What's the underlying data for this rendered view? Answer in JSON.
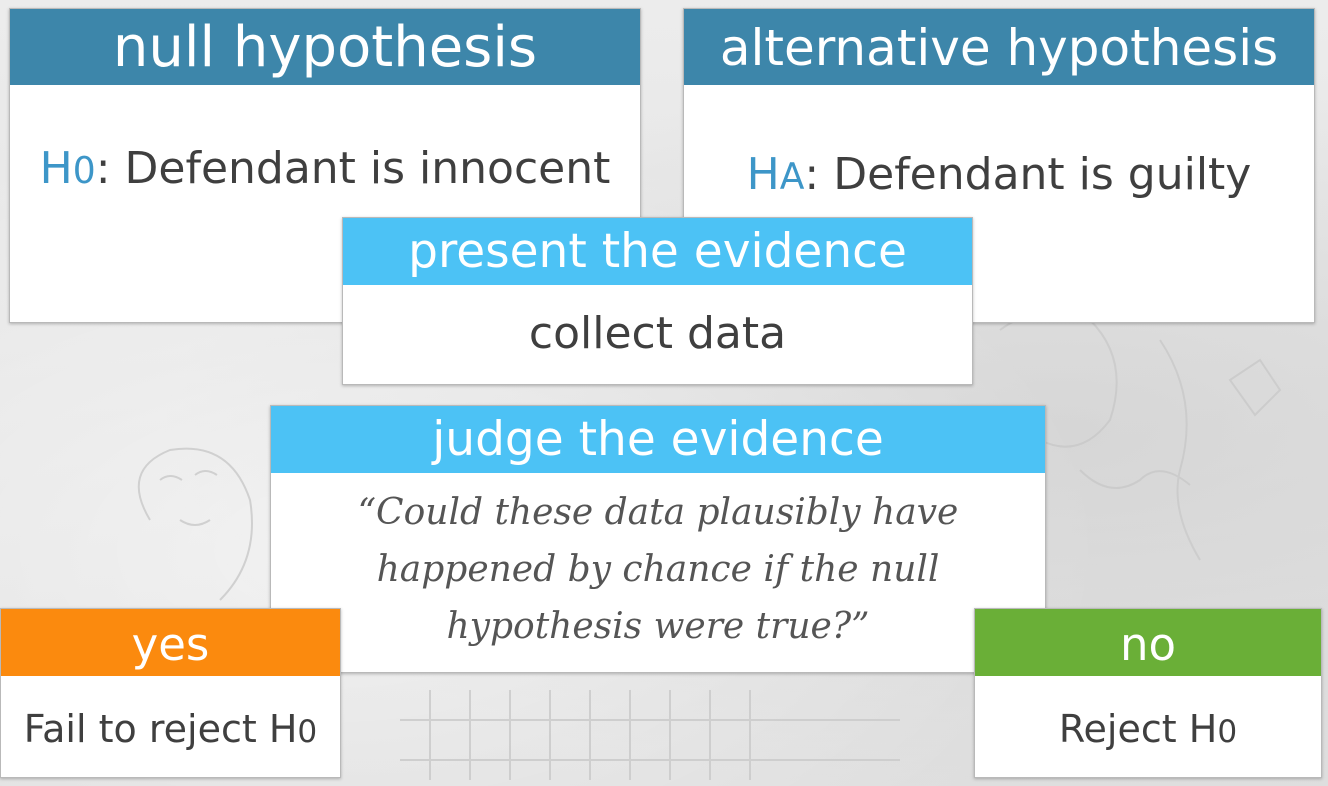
{
  "null_box": {
    "header": "null hypothesis",
    "symbol": "H",
    "subscript": "0",
    "colon": ":",
    "statement": " Defendant is innocent"
  },
  "alt_box": {
    "header": "alternative hypothesis",
    "symbol": "H",
    "subscript": "A",
    "colon": ":",
    "statement": " Defendant is guilty"
  },
  "present_box": {
    "header": "present the evidence",
    "body": "collect data"
  },
  "judge_box": {
    "header": "judge the evidence",
    "question_lines": [
      "“Could these data plausibly have",
      "happened by chance if the null",
      "hypothesis were true?”"
    ]
  },
  "yes_box": {
    "header": "yes",
    "body": "Fail to reject H",
    "subscript": "0"
  },
  "no_box": {
    "header": "no",
    "body": "Reject H",
    "subscript": "0"
  },
  "colors": {
    "dark_header": "#3d86aa",
    "light_header": "#4cc2f5",
    "yes_header": "#fb8a0e",
    "no_header": "#6aaf37",
    "symbol": "#3d96c8",
    "body_text": "#3f3f3f"
  }
}
